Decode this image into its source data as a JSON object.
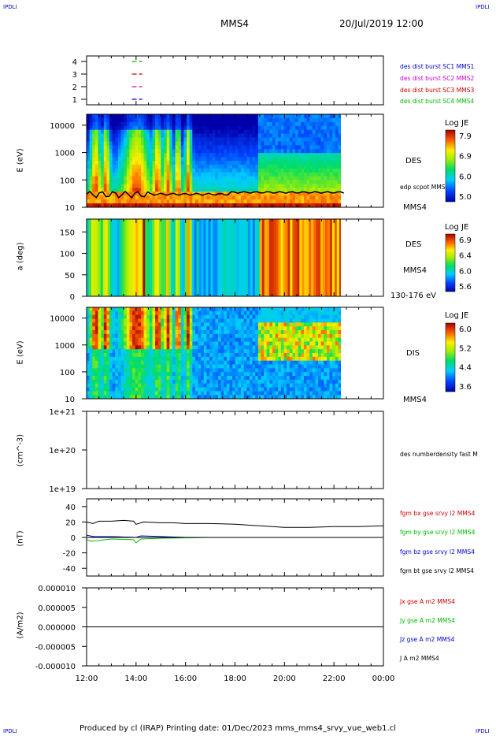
{
  "corners": {
    "tl": "IPDLI",
    "tr": "IPDLI",
    "bl": "IPDLI",
    "br": "IPDLI"
  },
  "header": {
    "title": "MMS4",
    "datetime": "20/Jul/2019 12:00"
  },
  "footer": "Produced by cl (IRAP)   Printing date: 01/Dec/2023   mms_mms4_srvy_vue_web1.cl",
  "chart_data": [
    {
      "id": "availability",
      "type": "line",
      "yticks": [
        "1",
        "2",
        "3",
        "4"
      ],
      "x": [
        "12:00",
        "14:00",
        "16:00",
        "18:00",
        "20:00",
        "22:00",
        "00:00"
      ],
      "legend": [
        {
          "label": "des dist burst SC1 MMS1",
          "color": "#0000cc"
        },
        {
          "label": "des dist burst SC2 MMS2",
          "color": "#cc00cc"
        },
        {
          "label": "des dist burst SC3 MMS3",
          "color": "#cc0000"
        },
        {
          "label": "des dist burst SC4 MMS4",
          "color": "#00bb00"
        }
      ],
      "segments": [
        {
          "level": 4,
          "color": "#00bb00",
          "from": "13:50",
          "to": "14:15"
        },
        {
          "level": 3,
          "color": "#cc0000",
          "from": "13:50",
          "to": "14:15"
        },
        {
          "level": 2,
          "color": "#cc00cc",
          "from": "13:50",
          "to": "14:15"
        },
        {
          "level": 1,
          "color": "#0000cc",
          "from": "13:50",
          "to": "14:15"
        }
      ]
    },
    {
      "id": "des-energy",
      "type": "heatmap",
      "ylabel": "E (eV)",
      "yscale": "log",
      "yticks": [
        "10",
        "100",
        "1000",
        "10000"
      ],
      "label": "DES",
      "label2": "edp scpot MMS4",
      "label3": "MMS4",
      "colorbar": {
        "title": "Log JE",
        "ticks": [
          "7.9",
          "6.9",
          "6.0",
          "5.0"
        ]
      }
    },
    {
      "id": "des-pitch",
      "type": "heatmap",
      "ylabel": "a (deg)",
      "yticks": [
        "0",
        "50",
        "100",
        "150"
      ],
      "label": "DES",
      "label2": "MMS4",
      "label3": "130-176 eV",
      "colorbar": {
        "title": "Log JE",
        "ticks": [
          "6.9",
          "6.4",
          "6.0",
          "5.6"
        ]
      }
    },
    {
      "id": "dis-energy",
      "type": "heatmap",
      "ylabel": "E (eV)",
      "yscale": "log",
      "yticks": [
        "10",
        "100",
        "1000",
        "10000"
      ],
      "label": "DIS",
      "label2": "MMS4",
      "colorbar": {
        "title": "Log JE",
        "ticks": [
          "6.0",
          "5.2",
          "4.4",
          "3.6"
        ]
      }
    },
    {
      "id": "density",
      "type": "line",
      "ylabel": "(cm^-3)",
      "yscale": "log",
      "yticks": [
        "1e+19",
        "1e+20",
        "1e+21"
      ],
      "legend": [
        {
          "label": "des numberdensity fast M",
          "color": "#000000"
        }
      ]
    },
    {
      "id": "magnetic-field",
      "type": "line",
      "ylabel": "(nT)",
      "ylim": [
        -50,
        50
      ],
      "yticks": [
        "-40",
        "-20",
        "0",
        "20",
        "40"
      ],
      "legend": [
        {
          "label": "fgm bx gse srvy l2 MMS4",
          "color": "#cc0000"
        },
        {
          "label": "fgm by gse srvy l2 MMS4",
          "color": "#00bb00"
        },
        {
          "label": "fgm bz gse srvy l2 MMS4",
          "color": "#0000cc"
        },
        {
          "label": "fgm bt gse srvy l2 MMS4",
          "color": "#000000"
        }
      ],
      "series": [
        {
          "name": "bt",
          "color": "#000000",
          "x": [
            12,
            12.25,
            12.5,
            13,
            13.5,
            13.9,
            14,
            14.3,
            15,
            15.5,
            16,
            17,
            18,
            19,
            20,
            21,
            22,
            23,
            24
          ],
          "y": [
            20,
            18,
            21,
            21,
            22,
            21,
            17,
            20,
            19,
            19,
            18,
            18,
            17,
            15,
            13,
            13,
            14,
            14,
            15
          ]
        },
        {
          "name": "bx",
          "color": "#cc0000",
          "x": [
            12,
            13,
            14,
            16,
            20,
            24
          ],
          "y": [
            0,
            1,
            0,
            0,
            0,
            0
          ]
        },
        {
          "name": "by",
          "color": "#00bb00",
          "x": [
            12,
            12.2,
            13,
            13.9,
            14,
            14.2,
            15,
            17,
            24
          ],
          "y": [
            -3,
            -5,
            -2,
            -3,
            -7,
            -2,
            -1,
            0,
            0
          ]
        },
        {
          "name": "bz",
          "color": "#0000cc",
          "x": [
            12,
            12.3,
            13,
            14,
            14.2,
            16,
            20,
            24
          ],
          "y": [
            3,
            1,
            1,
            0,
            2,
            0,
            0,
            0
          ]
        }
      ]
    },
    {
      "id": "current",
      "type": "line",
      "ylabel": "(A/m2)",
      "ylim": [
        -1e-05,
        1e-05
      ],
      "yticks": [
        "-0.000010",
        "-0.000005",
        "0.000000",
        "0.000005",
        "0.000010"
      ],
      "legend": [
        {
          "label": "Jx gse A m2 MMS4",
          "color": "#cc0000"
        },
        {
          "label": "Jy gse A m2 MMS4",
          "color": "#00bb00"
        },
        {
          "label": "Jz gse A m2 MMS4",
          "color": "#0000cc"
        },
        {
          "label": "J A m2 MMS4",
          "color": "#000000"
        }
      ],
      "series": [
        {
          "name": "J",
          "color": "#000000",
          "x": [
            12,
            24
          ],
          "y": [
            0,
            0
          ]
        }
      ]
    }
  ]
}
